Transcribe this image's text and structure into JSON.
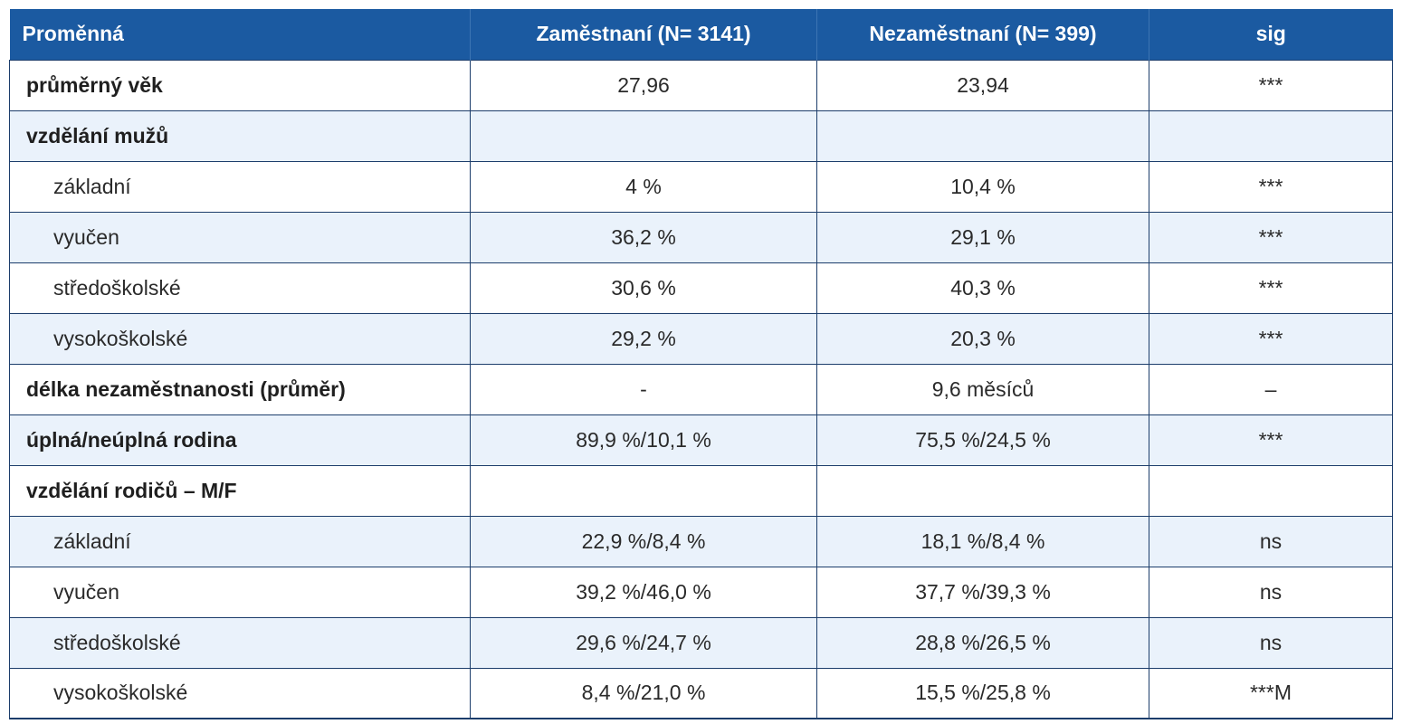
{
  "table": {
    "headers": [
      "Proměnná",
      "Zaměstnaní (N= 3141)",
      "Nezaměstnaní (N= 399)",
      "sig"
    ],
    "rows": [
      {
        "label": "průměrný věk",
        "emp": "27,96",
        "unemp": "23,94",
        "sig": "***"
      },
      {
        "label": "vzdělání mužů",
        "emp": "",
        "unemp": "",
        "sig": ""
      },
      {
        "label": "základní",
        "emp": "4 %",
        "unemp": "10,4 %",
        "sig": "***"
      },
      {
        "label": "vyučen",
        "emp": "36,2 %",
        "unemp": "29,1 %",
        "sig": "***"
      },
      {
        "label": "středoškolské",
        "emp": "30,6 %",
        "unemp": "40,3 %",
        "sig": "***"
      },
      {
        "label": "vysokoškolské",
        "emp": "29,2 %",
        "unemp": "20,3 %",
        "sig": "***"
      },
      {
        "label": "délka nezaměstnanosti (průměr)",
        "emp": "-",
        "unemp": "9,6 měsíců",
        "sig": "–"
      },
      {
        "label": "úplná/neúplná rodina",
        "emp": "89,9 %/10,1 %",
        "unemp": "75,5 %/24,5 %",
        "sig": "***"
      },
      {
        "label": "vzdělání rodičů – M/F",
        "emp": "",
        "unemp": "",
        "sig": ""
      },
      {
        "label": "základní",
        "emp": "22,9 %/8,4 %",
        "unemp": "18,1 %/8,4 %",
        "sig": "ns"
      },
      {
        "label": "vyučen",
        "emp": "39,2 %/46,0 %",
        "unemp": "37,7 %/39,3 %",
        "sig": "ns"
      },
      {
        "label": "středoškolské",
        "emp": "29,6 %/24,7 %",
        "unemp": "28,8 %/26,5 %",
        "sig": "ns"
      },
      {
        "label": "vysokoškolské",
        "emp": "8,4 %/21,0 %",
        "unemp": "15,5 %/25,8 %",
        "sig": "***M"
      }
    ]
  },
  "colors": {
    "header_bg": "#1b5aa1",
    "header_text": "#ffffff",
    "row_alt_bg": "#eaf2fb",
    "border": "#1c3d6b"
  }
}
